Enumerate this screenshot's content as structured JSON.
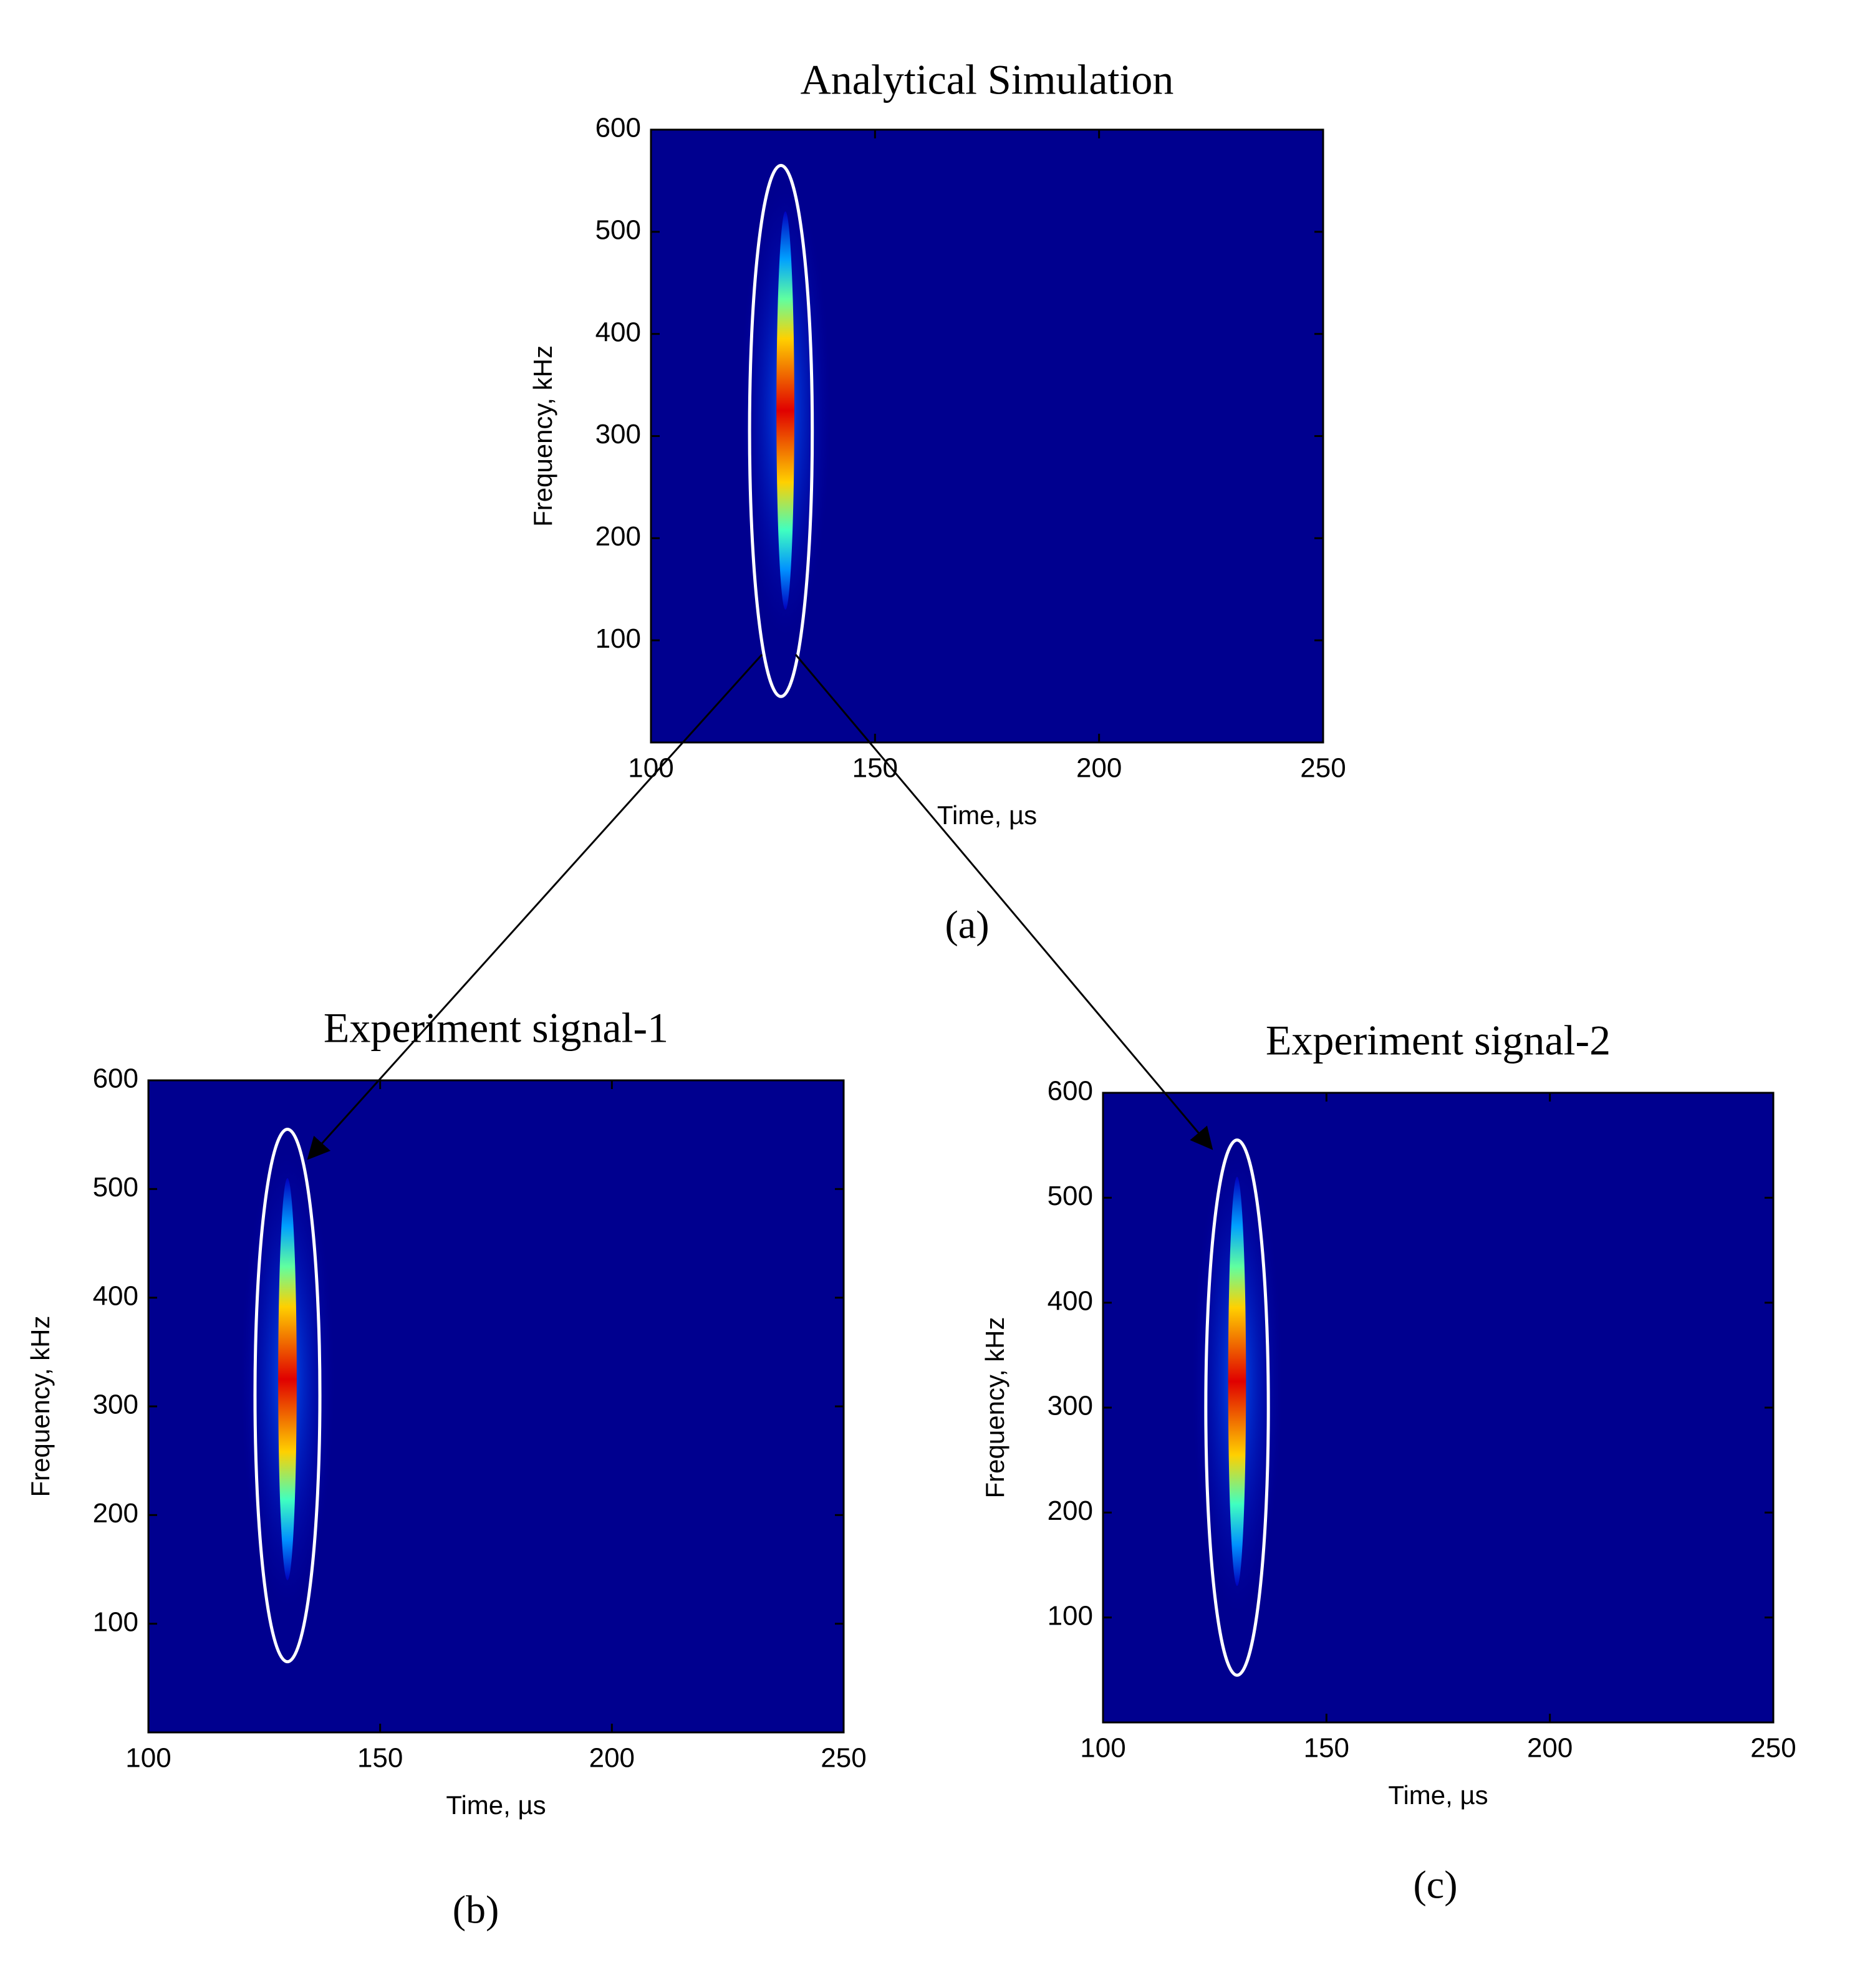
{
  "chart_data": [
    {
      "type": "spectrogram",
      "title": "Analytical Simulation",
      "caption": "(a)",
      "x_label": "Time, µs",
      "y_label": "Frequency, kHz",
      "xlim": [
        100,
        250
      ],
      "ylim": [
        0,
        600
      ],
      "xticks": [
        100,
        150,
        200,
        250
      ],
      "yticks": [
        100,
        200,
        300,
        400,
        500,
        600
      ],
      "background": "#00008f",
      "ridge": {
        "time": 130,
        "freq": [
          130,
          520
        ],
        "halfwidth": 2
      },
      "highlight": {
        "time": 129,
        "freq": [
          45,
          565
        ],
        "halfwidth": 7
      }
    },
    {
      "type": "spectrogram",
      "title": "Experiment signal-1",
      "caption": "(b)",
      "x_label": "Time, µs",
      "y_label": "Frequency, kHz",
      "xlim": [
        100,
        250
      ],
      "ylim": [
        0,
        600
      ],
      "xticks": [
        100,
        150,
        200,
        250
      ],
      "yticks": [
        100,
        200,
        300,
        400,
        500,
        600
      ],
      "background": "#00008f",
      "ridge": {
        "time": 130,
        "freq": [
          140,
          510
        ],
        "halfwidth": 2
      },
      "highlight": {
        "time": 130,
        "freq": [
          65,
          555
        ],
        "halfwidth": 7
      }
    },
    {
      "type": "spectrogram",
      "title": "Experiment signal-2",
      "caption": "(c)",
      "x_label": "Time, µs",
      "y_label": "Frequency, kHz",
      "xlim": [
        100,
        250
      ],
      "ylim": [
        0,
        600
      ],
      "xticks": [
        100,
        150,
        200,
        250
      ],
      "yticks": [
        100,
        200,
        300,
        400,
        500,
        600
      ],
      "background": "#00008f",
      "ridge": {
        "time": 130,
        "freq": [
          130,
          520
        ],
        "halfwidth": 2
      },
      "highlight": {
        "time": 130,
        "freq": [
          45,
          555
        ],
        "halfwidth": 7
      }
    }
  ]
}
